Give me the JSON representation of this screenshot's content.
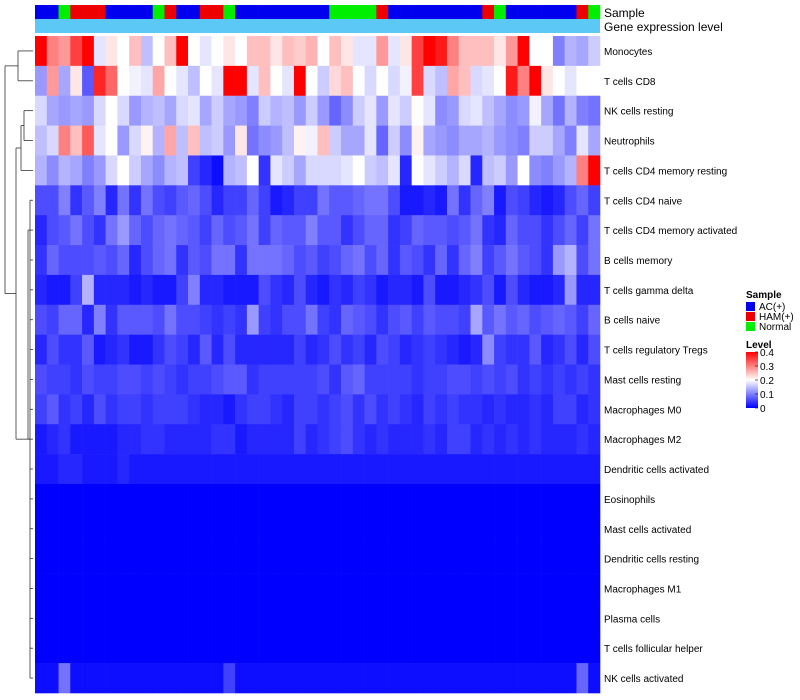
{
  "chart_data": {
    "type": "heatmap",
    "title": "",
    "annotation_tracks": [
      {
        "name": "Sample"
      },
      {
        "name": "Gene expression level"
      }
    ],
    "sample_groups": [
      "AC(+)",
      "AC(+)",
      "Normal",
      "HAM(+)",
      "HAM(+)",
      "HAM(+)",
      "AC(+)",
      "AC(+)",
      "AC(+)",
      "AC(+)",
      "Normal",
      "HAM(+)",
      "AC(+)",
      "AC(+)",
      "HAM(+)",
      "HAM(+)",
      "Normal",
      "AC(+)",
      "AC(+)",
      "AC(+)",
      "AC(+)",
      "AC(+)",
      "AC(+)",
      "AC(+)",
      "AC(+)",
      "Normal",
      "Normal",
      "Normal",
      "Normal",
      "HAM(+)",
      "AC(+)",
      "AC(+)",
      "AC(+)",
      "AC(+)",
      "AC(+)",
      "AC(+)",
      "AC(+)",
      "AC(+)",
      "HAM(+)",
      "Normal",
      "AC(+)",
      "AC(+)",
      "AC(+)",
      "AC(+)",
      "AC(+)",
      "AC(+)",
      "HAM(+)",
      "Normal"
    ],
    "rows": [
      "Monocytes",
      "T cells CD8",
      "NK cells resting",
      "Neutrophils",
      "T cells CD4 memory resting",
      "T cells CD4 naive",
      "T cells CD4 memory activated",
      "B cells memory",
      "T cells gamma delta",
      "B cells naive",
      "T cells regulatory  Tregs",
      "Mast cells resting",
      "Macrophages M0",
      "Macrophages M2",
      "Dendritic cells activated",
      "Eosinophils",
      "Mast cells activated",
      "Dendritic cells resting",
      "Macrophages M1",
      "Plasma cells",
      "T cells follicular helper",
      "NK cells activated"
    ],
    "values": [
      [
        0.4,
        0.3,
        0.28,
        0.35,
        0.4,
        0.18,
        0.22,
        0.2,
        0.25,
        0.15,
        0.2,
        0.25,
        0.4,
        0.2,
        0.18,
        0.2,
        0.22,
        0.2,
        0.25,
        0.25,
        0.22,
        0.25,
        0.24,
        0.26,
        0.2,
        0.25,
        0.22,
        0.18,
        0.18,
        0.28,
        0.18,
        0.22,
        0.35,
        0.4,
        0.38,
        0.3,
        0.25,
        0.25,
        0.25,
        0.22,
        0.28,
        0.4,
        0.2,
        0.2,
        0.1,
        0.14,
        0.13,
        0.16
      ],
      [
        0.12,
        0.28,
        0.13,
        0.22,
        0.07,
        0.37,
        0.32,
        0.2,
        0.19,
        0.18,
        0.27,
        0.2,
        0.18,
        0.15,
        0.2,
        0.18,
        0.4,
        0.4,
        0.18,
        0.25,
        0.2,
        0.18,
        0.4,
        0.2,
        0.16,
        0.23,
        0.25,
        0.2,
        0.17,
        0.2,
        0.17,
        0.19,
        0.35,
        0.17,
        0.15,
        0.27,
        0.25,
        0.17,
        0.18,
        0.2,
        0.38,
        0.3,
        0.4,
        0.22,
        0.2,
        0.18,
        0.2,
        0.2
      ],
      [
        0.17,
        0.13,
        0.12,
        0.13,
        0.12,
        0.17,
        0.2,
        0.17,
        0.12,
        0.14,
        0.15,
        0.13,
        0.17,
        0.18,
        0.13,
        0.16,
        0.13,
        0.12,
        0.1,
        0.16,
        0.14,
        0.15,
        0.12,
        0.16,
        0.12,
        0.08,
        0.11,
        0.16,
        0.18,
        0.12,
        0.18,
        0.16,
        0.2,
        0.18,
        0.11,
        0.12,
        0.17,
        0.18,
        0.15,
        0.13,
        0.11,
        0.12,
        0.19,
        0.13,
        0.09,
        0.14,
        0.1,
        0.09
      ],
      [
        0.15,
        0.17,
        0.3,
        0.25,
        0.33,
        0.18,
        0.2,
        0.12,
        0.17,
        0.21,
        0.14,
        0.27,
        0.15,
        0.25,
        0.15,
        0.16,
        0.12,
        0.22,
        0.09,
        0.11,
        0.12,
        0.15,
        0.21,
        0.19,
        0.25,
        0.16,
        0.13,
        0.13,
        0.18,
        0.08,
        0.16,
        0.11,
        0.21,
        0.13,
        0.12,
        0.11,
        0.13,
        0.13,
        0.14,
        0.12,
        0.11,
        0.1,
        0.16,
        0.16,
        0.13,
        0.1,
        0.18,
        0.13
      ],
      [
        0.14,
        0.11,
        0.14,
        0.13,
        0.1,
        0.12,
        0.17,
        0.2,
        0.16,
        0.13,
        0.11,
        0.14,
        0.15,
        0.05,
        0.03,
        0.01,
        0.14,
        0.15,
        0.2,
        0.04,
        0.18,
        0.16,
        0.13,
        0.17,
        0.17,
        0.17,
        0.18,
        0.2,
        0.16,
        0.15,
        0.18,
        0.03,
        0.2,
        0.18,
        0.16,
        0.14,
        0.17,
        0.03,
        0.15,
        0.16,
        0.12,
        0.2,
        0.11,
        0.1,
        0.12,
        0.14,
        0.3,
        0.4
      ],
      [
        0.06,
        0.06,
        0.1,
        0.04,
        0.07,
        0.1,
        0.03,
        0.09,
        0.04,
        0.09,
        0.06,
        0.05,
        0.07,
        0.08,
        0.06,
        0.03,
        0.05,
        0.05,
        0.08,
        0.05,
        0.02,
        0.03,
        0.05,
        0.05,
        0.09,
        0.07,
        0.07,
        0.08,
        0.09,
        0.09,
        0.06,
        0.02,
        0.02,
        0.03,
        0.02,
        0.09,
        0.04,
        0.08,
        0.1,
        0.02,
        0.06,
        0.05,
        0.03,
        0.02,
        0.03,
        0.06,
        0.08,
        0.05
      ],
      [
        0.03,
        0.06,
        0.07,
        0.09,
        0.06,
        0.04,
        0.09,
        0.12,
        0.08,
        0.06,
        0.08,
        0.09,
        0.08,
        0.07,
        0.05,
        0.08,
        0.06,
        0.07,
        0.09,
        0.05,
        0.08,
        0.07,
        0.07,
        0.1,
        0.07,
        0.07,
        0.04,
        0.06,
        0.08,
        0.08,
        0.04,
        0.05,
        0.08,
        0.07,
        0.07,
        0.06,
        0.07,
        0.09,
        0.04,
        0.03,
        0.08,
        0.06,
        0.06,
        0.04,
        0.06,
        0.08,
        0.05,
        0.09
      ],
      [
        0.04,
        0.08,
        0.06,
        0.06,
        0.06,
        0.07,
        0.06,
        0.08,
        0.03,
        0.06,
        0.08,
        0.09,
        0.04,
        0.07,
        0.06,
        0.09,
        0.09,
        0.04,
        0.09,
        0.09,
        0.09,
        0.08,
        0.06,
        0.07,
        0.05,
        0.06,
        0.08,
        0.09,
        0.06,
        0.08,
        0.04,
        0.07,
        0.06,
        0.04,
        0.08,
        0.04,
        0.08,
        0.1,
        0.05,
        0.07,
        0.09,
        0.07,
        0.06,
        0.04,
        0.12,
        0.14,
        0.06,
        0.09
      ],
      [
        0.03,
        0.02,
        0.02,
        0.05,
        0.14,
        0.03,
        0.03,
        0.03,
        0.02,
        0.03,
        0.02,
        0.02,
        0.05,
        0.1,
        0.03,
        0.03,
        0.02,
        0.02,
        0.02,
        0.06,
        0.04,
        0.03,
        0.06,
        0.03,
        0.02,
        0.04,
        0.03,
        0.05,
        0.04,
        0.02,
        0.03,
        0.03,
        0.02,
        0.06,
        0.02,
        0.02,
        0.03,
        0.04,
        0.06,
        0.02,
        0.06,
        0.03,
        0.02,
        0.02,
        0.03,
        0.12,
        0.03,
        0.03
      ],
      [
        0.06,
        0.05,
        0.08,
        0.08,
        0.03,
        0.1,
        0.04,
        0.07,
        0.07,
        0.07,
        0.06,
        0.09,
        0.06,
        0.06,
        0.05,
        0.04,
        0.05,
        0.04,
        0.12,
        0.05,
        0.04,
        0.06,
        0.06,
        0.09,
        0.05,
        0.04,
        0.08,
        0.07,
        0.06,
        0.04,
        0.06,
        0.07,
        0.05,
        0.07,
        0.06,
        0.06,
        0.05,
        0.13,
        0.07,
        0.09,
        0.07,
        0.08,
        0.06,
        0.07,
        0.08,
        0.07,
        0.05,
        0.08
      ],
      [
        0.03,
        0.06,
        0.04,
        0.04,
        0.07,
        0.02,
        0.03,
        0.04,
        0.02,
        0.02,
        0.04,
        0.06,
        0.05,
        0.03,
        0.07,
        0.03,
        0.06,
        0.03,
        0.03,
        0.03,
        0.03,
        0.03,
        0.05,
        0.03,
        0.04,
        0.06,
        0.04,
        0.05,
        0.03,
        0.06,
        0.05,
        0.03,
        0.04,
        0.05,
        0.04,
        0.03,
        0.02,
        0.03,
        0.11,
        0.05,
        0.04,
        0.04,
        0.07,
        0.03,
        0.04,
        0.06,
        0.03,
        0.06
      ],
      [
        0.06,
        0.05,
        0.05,
        0.04,
        0.06,
        0.05,
        0.05,
        0.06,
        0.06,
        0.05,
        0.06,
        0.05,
        0.04,
        0.05,
        0.05,
        0.06,
        0.07,
        0.07,
        0.04,
        0.05,
        0.05,
        0.05,
        0.05,
        0.05,
        0.06,
        0.04,
        0.07,
        0.08,
        0.05,
        0.05,
        0.05,
        0.05,
        0.04,
        0.05,
        0.05,
        0.06,
        0.06,
        0.05,
        0.06,
        0.05,
        0.06,
        0.04,
        0.05,
        0.04,
        0.05,
        0.04,
        0.05,
        0.04
      ],
      [
        0.05,
        0.07,
        0.04,
        0.05,
        0.03,
        0.06,
        0.04,
        0.05,
        0.05,
        0.04,
        0.05,
        0.05,
        0.05,
        0.04,
        0.03,
        0.03,
        0.02,
        0.04,
        0.05,
        0.05,
        0.04,
        0.03,
        0.05,
        0.05,
        0.04,
        0.05,
        0.06,
        0.04,
        0.06,
        0.04,
        0.05,
        0.04,
        0.03,
        0.05,
        0.04,
        0.05,
        0.04,
        0.04,
        0.03,
        0.04,
        0.03,
        0.03,
        0.04,
        0.03,
        0.05,
        0.05,
        0.03,
        0.04
      ],
      [
        0.02,
        0.03,
        0.04,
        0.02,
        0.02,
        0.02,
        0.02,
        0.03,
        0.03,
        0.04,
        0.04,
        0.03,
        0.03,
        0.03,
        0.03,
        0.04,
        0.04,
        0.02,
        0.03,
        0.03,
        0.03,
        0.03,
        0.05,
        0.03,
        0.04,
        0.05,
        0.06,
        0.04,
        0.03,
        0.04,
        0.03,
        0.03,
        0.03,
        0.04,
        0.03,
        0.05,
        0.05,
        0.03,
        0.04,
        0.03,
        0.04,
        0.03,
        0.04,
        0.03,
        0.03,
        0.03,
        0.04,
        0.03
      ],
      [
        0.02,
        0.02,
        0.03,
        0.03,
        0.02,
        0.02,
        0.02,
        0.03,
        0.02,
        0.02,
        0.02,
        0.02,
        0.02,
        0.02,
        0.02,
        0.02,
        0.02,
        0.02,
        0.02,
        0.02,
        0.02,
        0.02,
        0.02,
        0.02,
        0.02,
        0.02,
        0.02,
        0.02,
        0.02,
        0.02,
        0.02,
        0.02,
        0.02,
        0.02,
        0.02,
        0.02,
        0.02,
        0.02,
        0.02,
        0.02,
        0.02,
        0.02,
        0.02,
        0.02,
        0.02,
        0.02,
        0.02,
        0.02
      ],
      [
        0,
        0,
        0,
        0,
        0,
        0,
        0,
        0,
        0,
        0,
        0,
        0,
        0,
        0,
        0,
        0,
        0,
        0,
        0,
        0,
        0,
        0,
        0,
        0,
        0,
        0,
        0,
        0,
        0,
        0,
        0,
        0,
        0,
        0,
        0,
        0,
        0,
        0,
        0,
        0,
        0,
        0,
        0,
        0,
        0,
        0,
        0,
        0
      ],
      [
        0,
        0,
        0,
        0,
        0,
        0,
        0,
        0,
        0,
        0,
        0,
        0,
        0,
        0,
        0,
        0,
        0,
        0,
        0,
        0,
        0,
        0,
        0,
        0,
        0,
        0,
        0,
        0,
        0,
        0,
        0,
        0,
        0,
        0,
        0,
        0,
        0,
        0,
        0,
        0,
        0,
        0,
        0,
        0,
        0,
        0,
        0,
        0
      ],
      [
        0,
        0,
        0,
        0,
        0,
        0,
        0,
        0,
        0,
        0,
        0,
        0,
        0,
        0,
        0,
        0,
        0,
        0,
        0,
        0,
        0,
        0,
        0,
        0,
        0,
        0,
        0,
        0,
        0,
        0,
        0,
        0,
        0,
        0,
        0,
        0,
        0,
        0,
        0,
        0,
        0,
        0,
        0,
        0,
        0,
        0,
        0,
        0
      ],
      [
        0,
        0,
        0,
        0,
        0,
        0,
        0,
        0,
        0,
        0,
        0,
        0,
        0,
        0,
        0,
        0,
        0,
        0,
        0,
        0,
        0,
        0,
        0,
        0,
        0,
        0,
        0,
        0,
        0,
        0,
        0,
        0,
        0,
        0,
        0,
        0,
        0,
        0,
        0,
        0,
        0,
        0,
        0,
        0,
        0,
        0,
        0,
        0
      ],
      [
        0,
        0,
        0,
        0,
        0,
        0,
        0,
        0,
        0,
        0,
        0,
        0,
        0,
        0,
        0,
        0,
        0,
        0,
        0,
        0,
        0,
        0,
        0,
        0,
        0,
        0,
        0,
        0,
        0,
        0,
        0,
        0,
        0,
        0,
        0,
        0,
        0,
        0,
        0,
        0,
        0,
        0,
        0,
        0,
        0,
        0,
        0,
        0
      ],
      [
        0,
        0,
        0,
        0,
        0,
        0,
        0,
        0,
        0,
        0,
        0,
        0,
        0,
        0,
        0,
        0,
        0,
        0,
        0,
        0,
        0,
        0,
        0,
        0,
        0,
        0,
        0,
        0,
        0,
        0,
        0,
        0,
        0,
        0,
        0,
        0,
        0,
        0,
        0,
        0,
        0,
        0,
        0,
        0,
        0,
        0,
        0,
        0
      ],
      [
        0.01,
        0.01,
        0.09,
        0.01,
        0.01,
        0.01,
        0.01,
        0.01,
        0.01,
        0.01,
        0.01,
        0.01,
        0.01,
        0.01,
        0.01,
        0.01,
        0.05,
        0.01,
        0.01,
        0.01,
        0.01,
        0.01,
        0.01,
        0.01,
        0.01,
        0.01,
        0.01,
        0.01,
        0.01,
        0.01,
        0.01,
        0.01,
        0.01,
        0.01,
        0.01,
        0.01,
        0.01,
        0.01,
        0.01,
        0.01,
        0.01,
        0.01,
        0.01,
        0.01,
        0.01,
        0.01,
        0.08,
        0.01
      ]
    ],
    "legend": {
      "sample": {
        "title": "Sample",
        "entries": [
          {
            "label": "AC(+)",
            "color": "#0000ee"
          },
          {
            "label": "HAM(+)",
            "color": "#ee0000"
          },
          {
            "label": "Normal",
            "color": "#00ee00"
          }
        ]
      },
      "level": {
        "title": "Level",
        "ticks": [
          0.4,
          0.3,
          0.2,
          0.1,
          0
        ],
        "tick_labels": [
          "0.4",
          "0.3",
          "0.2",
          "0.1",
          "0"
        ],
        "range": [
          0,
          0.4
        ],
        "colors": {
          "low": "#0000ff",
          "mid": "#ffffff",
          "high": "#ff0000"
        }
      }
    },
    "expression_track_color": "#5bc8f5",
    "dendrogram": "row clustering dendrogram (left side)"
  }
}
